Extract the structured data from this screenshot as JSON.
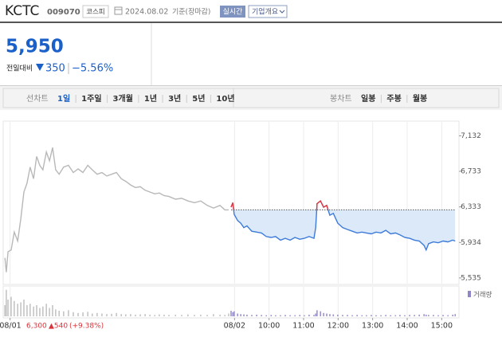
{
  "header": {
    "name": "KCTC",
    "code": "009070",
    "market": "코스피",
    "date": "2024.08.02",
    "basis": "기준(장마감)",
    "realtime": "실시간",
    "company": "기업개요"
  },
  "price": {
    "current": "5,950",
    "change_label": "전일대비",
    "change": "350",
    "rate": "−5.56%"
  },
  "tabs": {
    "line_label": "선차트",
    "line_periods": [
      "1일",
      "1주일",
      "3개월",
      "1년",
      "3년",
      "5년",
      "10년"
    ],
    "candle_label": "봉차트",
    "candle_periods": [
      "일봉",
      "주봉",
      "월봉"
    ]
  },
  "chart_data": {
    "type": "line",
    "xlim": [
      -0.2,
      13.0
    ],
    "xticks": [
      {
        "value": 0,
        "label": "08/01"
      },
      {
        "value": 6.5,
        "label": "08/02"
      },
      {
        "value": 7.5,
        "label": "10:00"
      },
      {
        "value": 8.5,
        "label": "11:00"
      },
      {
        "value": 9.5,
        "label": "12:00"
      },
      {
        "value": 10.5,
        "label": "13:00"
      },
      {
        "value": 11.5,
        "label": "14:00"
      },
      {
        "value": 12.5,
        "label": "15:00"
      }
    ],
    "ylim": [
      5480,
      7270
    ],
    "yticks": [
      {
        "value": 7132,
        "label": "7,132"
      },
      {
        "value": 6733,
        "label": "6,733"
      },
      {
        "value": 6333,
        "label": "6,333"
      },
      {
        "value": 5934,
        "label": "5,934"
      },
      {
        "value": 5535,
        "label": "5,535"
      }
    ],
    "grid": "x",
    "reference_line": 6300,
    "reference_color": "#555555",
    "volume_label": "거래량",
    "volume_legend_color": "#8f86c8",
    "volume_ylim": [
      0,
      100
    ],
    "footer": {
      "close": "6,300",
      "change": "▲540",
      "rate": "(+9.38%)"
    },
    "series": [
      {
        "color": "#b8b8b8",
        "volume_color": "#c4c4c4",
        "x": [
          -0.15,
          -0.11,
          -0.06,
          0.03,
          0.12,
          0.22,
          0.31,
          0.4,
          0.49,
          0.58,
          0.68,
          0.77,
          0.86,
          0.95,
          1.05,
          1.14,
          1.23,
          1.32,
          1.42,
          1.55,
          1.69,
          1.83,
          1.97,
          2.11,
          2.25,
          2.38,
          2.52,
          2.66,
          2.8,
          2.94,
          3.08,
          3.22,
          3.35,
          3.49,
          3.63,
          3.77,
          3.91,
          4.05,
          4.19,
          4.32,
          4.46,
          4.6,
          4.79,
          4.97,
          5.15,
          5.34,
          5.52,
          5.71,
          5.89,
          6.08,
          6.22,
          6.33
        ],
        "values": [
          5760,
          5600,
          5830,
          5850,
          6050,
          5950,
          6200,
          6500,
          6600,
          6780,
          6650,
          6900,
          6800,
          6750,
          6950,
          6850,
          7000,
          6750,
          6700,
          6780,
          6800,
          6720,
          6760,
          6720,
          6800,
          6750,
          6700,
          6720,
          6680,
          6700,
          6720,
          6650,
          6620,
          6580,
          6550,
          6560,
          6520,
          6500,
          6480,
          6490,
          6460,
          6450,
          6420,
          6430,
          6400,
          6380,
          6400,
          6350,
          6320,
          6350,
          6300,
          6300
        ],
        "volume": [
          40,
          95,
          60,
          70,
          55,
          45,
          50,
          60,
          40,
          45,
          35,
          40,
          30,
          35,
          45,
          30,
          40,
          25,
          20,
          18,
          22,
          15,
          12,
          14,
          16,
          10,
          12,
          10,
          8,
          9,
          12,
          8,
          7,
          8,
          6,
          7,
          8,
          6,
          5,
          7,
          6,
          5,
          6,
          5,
          7,
          5,
          6,
          5,
          8,
          6,
          5,
          10
        ]
      },
      {
        "color": "#3d7bd9",
        "above_color": "#e0393e",
        "fill": "#dce9f9",
        "volume_color": "#9b94cf",
        "x": [
          6.4,
          6.45,
          6.49,
          6.59,
          6.68,
          6.77,
          6.86,
          7.0,
          7.14,
          7.28,
          7.42,
          7.56,
          7.69,
          7.83,
          7.97,
          8.11,
          8.25,
          8.39,
          8.52,
          8.66,
          8.8,
          8.85,
          8.89,
          8.99,
          9.08,
          9.17,
          9.26,
          9.36,
          9.49,
          9.63,
          9.77,
          9.91,
          10.05,
          10.19,
          10.32,
          10.46,
          10.6,
          10.74,
          10.88,
          11.02,
          11.16,
          11.29,
          11.43,
          11.57,
          11.71,
          11.85,
          11.99,
          12.05,
          12.12,
          12.26,
          12.4,
          12.54,
          12.68,
          12.82,
          12.89
        ],
        "values": [
          6330,
          6380,
          6250,
          6180,
          6150,
          6100,
          6120,
          6060,
          6050,
          6040,
          6000,
          5990,
          6000,
          5960,
          5980,
          5960,
          5990,
          5970,
          5980,
          6000,
          5980,
          6100,
          6370,
          6400,
          6330,
          6350,
          6240,
          6260,
          6150,
          6100,
          6080,
          6060,
          6040,
          6050,
          6040,
          6030,
          6050,
          6040,
          6070,
          6030,
          6040,
          6020,
          5990,
          5980,
          5960,
          5950,
          5900,
          5850,
          5920,
          5940,
          5930,
          5950,
          5940,
          5960,
          5950
        ],
        "volume": [
          20,
          15,
          18,
          10,
          8,
          7,
          6,
          5,
          6,
          5,
          4,
          5,
          4,
          4,
          5,
          4,
          4,
          5,
          4,
          6,
          5,
          10,
          22,
          18,
          12,
          10,
          8,
          7,
          6,
          5,
          5,
          4,
          5,
          4,
          4,
          5,
          4,
          4,
          5,
          4,
          4,
          5,
          4,
          5,
          5,
          6,
          8,
          6,
          5,
          5,
          4,
          5,
          4,
          6,
          8
        ]
      }
    ]
  }
}
